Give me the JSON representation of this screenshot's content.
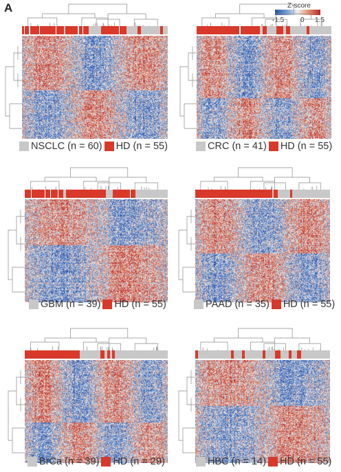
{
  "figure": {
    "panel_label": "A",
    "colorbar": {
      "title": "Z-score",
      "ticks": [
        "-1.5",
        "0",
        "1.5"
      ],
      "colors": [
        "#2a4ea8",
        "#f2f0ee",
        "#b3262d"
      ]
    },
    "group_colors": {
      "grey": "#c8c8c8",
      "red": "#d8392b"
    },
    "panels": [
      {
        "id": "nsclc",
        "legend": {
          "group1": "NSCLC (n = 60)",
          "group2": "HD (n = 55)"
        }
      },
      {
        "id": "crc",
        "legend": {
          "group1": "CRC (n = 41)",
          "group2": "HD (n = 55)"
        }
      },
      {
        "id": "gbm",
        "legend": {
          "group1": "GBM (n = 39)",
          "group2": "HD (n = 55)"
        }
      },
      {
        "id": "paad",
        "legend": {
          "group1": "PAAD (n = 35)",
          "group2": "HD (n = 55)"
        }
      },
      {
        "id": "brca",
        "legend": {
          "group1": "BrCa (n = 39)",
          "group2": "HD (n = 29)"
        }
      },
      {
        "id": "hbc",
        "legend": {
          "group1": "HBC (n = 14)",
          "group2": "HD (n = 55)"
        }
      }
    ]
  }
}
